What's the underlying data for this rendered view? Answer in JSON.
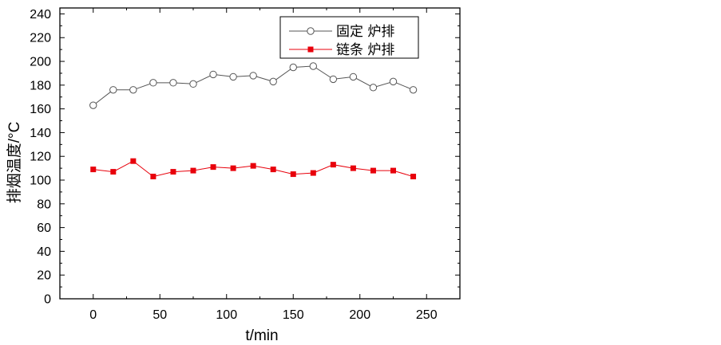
{
  "chart_data": {
    "type": "line",
    "title": "",
    "xlabel": "t/min",
    "ylabel": "排烟温度/°C",
    "xlim": [
      -25,
      275
    ],
    "ylim": [
      0,
      245
    ],
    "xticks": [
      0,
      50,
      100,
      150,
      200,
      250
    ],
    "yticks": [
      0,
      20,
      40,
      60,
      80,
      100,
      120,
      140,
      160,
      180,
      200,
      220,
      240
    ],
    "grid": false,
    "legend_position": "top-right",
    "x": [
      0,
      15,
      30,
      45,
      60,
      75,
      90,
      105,
      120,
      135,
      150,
      165,
      180,
      195,
      210,
      225,
      240
    ],
    "series": [
      {
        "name": "固定 炉排",
        "marker": "open-circle",
        "color": "#555555",
        "values": [
          163,
          176,
          176,
          182,
          182,
          181,
          189,
          187,
          188,
          183,
          195,
          196,
          185,
          187,
          178,
          183,
          176
        ]
      },
      {
        "name": "链条 炉排",
        "marker": "filled-square",
        "color": "#e8000b",
        "values": [
          109,
          107,
          116,
          103,
          107,
          108,
          111,
          110,
          112,
          109,
          105,
          106,
          113,
          110,
          108,
          108,
          103
        ]
      }
    ]
  }
}
